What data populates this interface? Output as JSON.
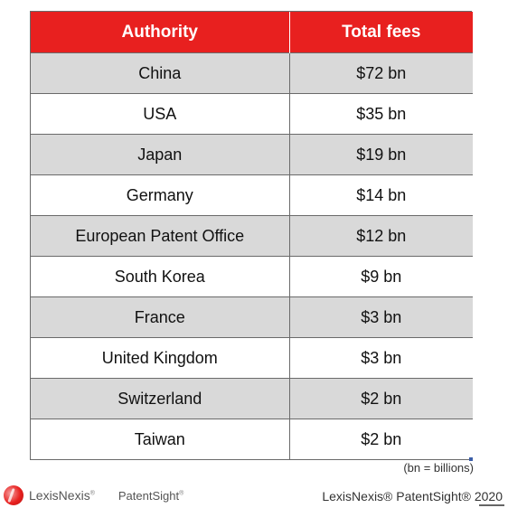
{
  "chart_data": {
    "type": "table",
    "columns": [
      "Authority",
      "Total fees"
    ],
    "rows": [
      {
        "authority": "China",
        "fees": "$72 bn",
        "value": 72
      },
      {
        "authority": "USA",
        "fees": "$35 bn",
        "value": 35
      },
      {
        "authority": "Japan",
        "fees": "$19 bn",
        "value": 19
      },
      {
        "authority": "Germany",
        "fees": "$14 bn",
        "value": 14
      },
      {
        "authority": "European Patent Office",
        "fees": "$12 bn",
        "value": 12
      },
      {
        "authority": "South Korea",
        "fees": "$9 bn",
        "value": 9
      },
      {
        "authority": "France",
        "fees": "$3 bn",
        "value": 3
      },
      {
        "authority": "United Kingdom",
        "fees": "$3 bn",
        "value": 3
      },
      {
        "authority": "Switzerland",
        "fees": "$2 bn",
        "value": 2
      },
      {
        "authority": "Taiwan",
        "fees": "$2 bn",
        "value": 2
      }
    ],
    "header_color": "#e8201f",
    "stripe_color": "#d9d9d9",
    "unit_note": "(bn = billions)"
  },
  "footer": {
    "brand_lexis": "LexisNexis",
    "brand_patentsight": "PatentSight",
    "credit": "LexisNexis® PatentSight® 2020"
  }
}
